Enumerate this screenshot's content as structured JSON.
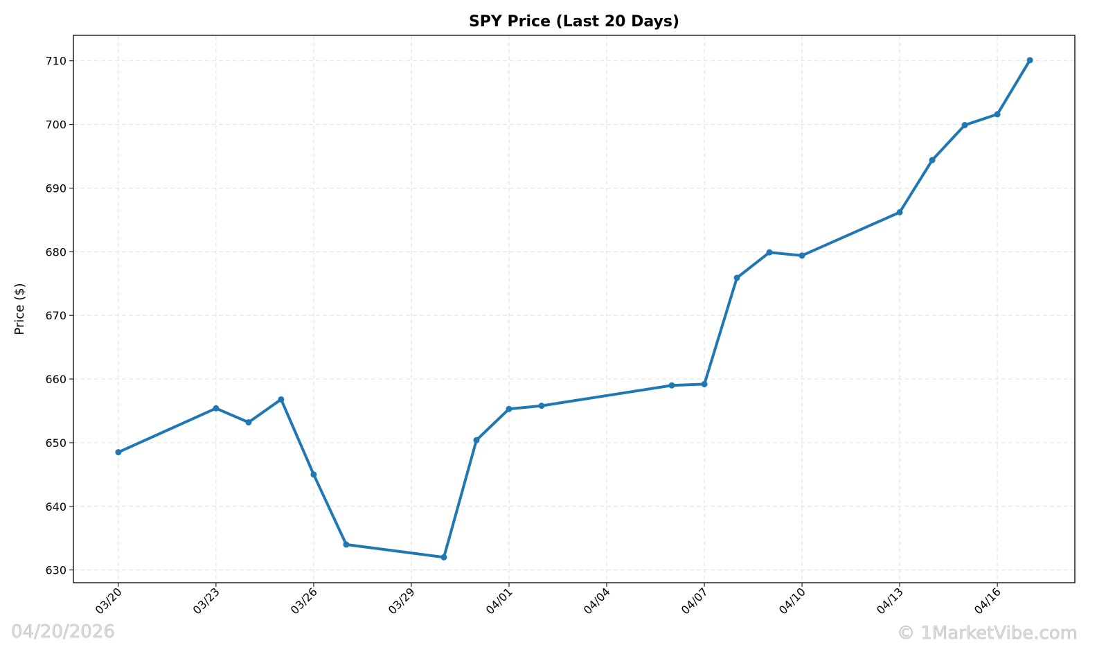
{
  "chart_data": {
    "type": "line",
    "title": "SPY Price (Last 20 Days)",
    "xlabel": "",
    "ylabel": "Price ($)",
    "ylim": [
      628.0,
      714.0
    ],
    "xlim_days": [
      -1.38,
      29.38
    ],
    "grid": true,
    "line_color": "#1f77b4",
    "x_dates": [
      "03/20",
      "03/23",
      "03/24",
      "03/25",
      "03/26",
      "03/27",
      "03/30",
      "03/31",
      "04/01",
      "04/02",
      "04/06",
      "04/07",
      "04/08",
      "04/09",
      "04/10",
      "04/13",
      "04/14",
      "04/15",
      "04/16",
      "04/17"
    ],
    "x_day_index": [
      0,
      3,
      4,
      5,
      6,
      7,
      10,
      11,
      12,
      13,
      17,
      18,
      19,
      20,
      21,
      24,
      25,
      26,
      27,
      28
    ],
    "values": [
      648.5,
      655.4,
      653.2,
      656.8,
      645.0,
      634.0,
      632.0,
      650.4,
      655.3,
      655.8,
      659.0,
      659.2,
      675.9,
      679.9,
      679.4,
      686.2,
      694.4,
      699.9,
      701.6,
      710.1
    ],
    "x_ticks": [
      {
        "day": 0,
        "label": "03/20"
      },
      {
        "day": 3,
        "label": "03/23"
      },
      {
        "day": 6,
        "label": "03/26"
      },
      {
        "day": 9,
        "label": "03/29"
      },
      {
        "day": 12,
        "label": "04/01"
      },
      {
        "day": 15,
        "label": "04/04"
      },
      {
        "day": 18,
        "label": "04/07"
      },
      {
        "day": 21,
        "label": "04/10"
      },
      {
        "day": 24,
        "label": "04/13"
      },
      {
        "day": 27,
        "label": "04/16"
      }
    ],
    "y_ticks": [
      630,
      640,
      650,
      660,
      670,
      680,
      690,
      700,
      710
    ]
  },
  "watermark": {
    "date": "04/20/2026",
    "copyright": "© 1MarketVibe.com"
  }
}
